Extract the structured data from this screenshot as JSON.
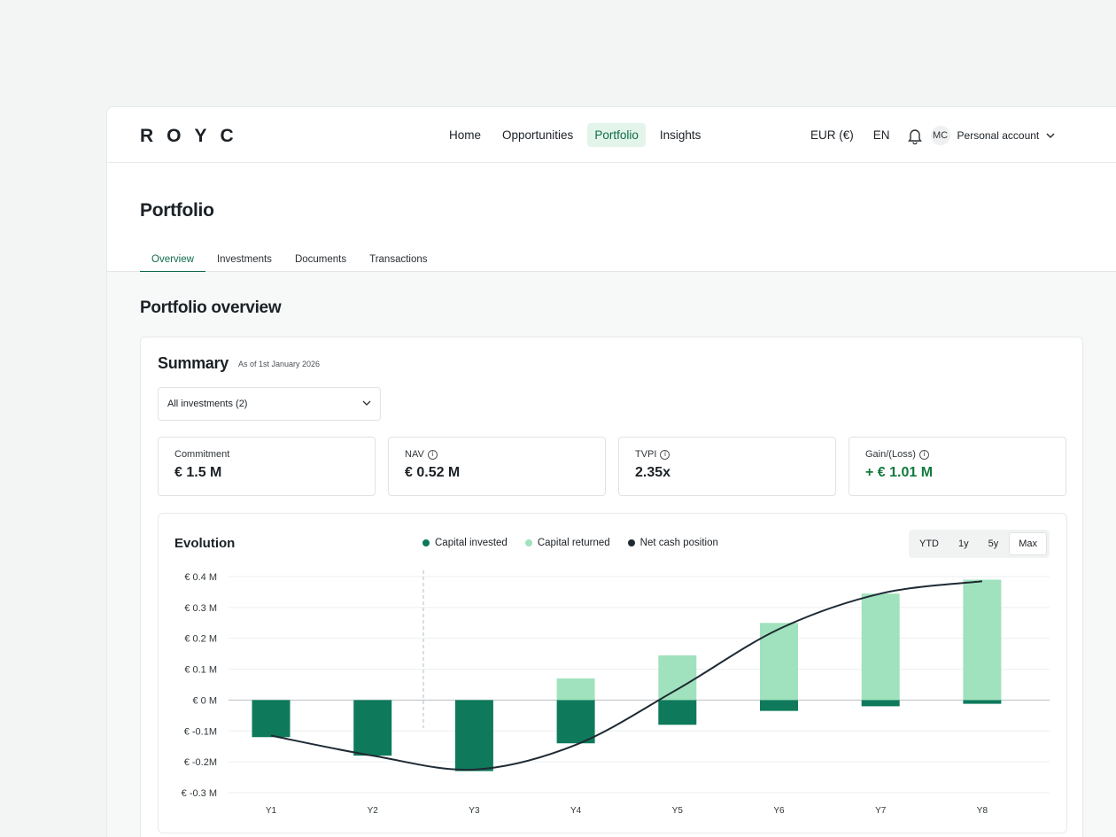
{
  "brand": {
    "logo": "ROYC"
  },
  "nav": {
    "items": [
      {
        "label": "Home"
      },
      {
        "label": "Opportunities"
      },
      {
        "label": "Portfolio",
        "active": true
      },
      {
        "label": "Insights"
      }
    ]
  },
  "toolbar": {
    "currency": "EUR (€)",
    "language": "EN",
    "bell_icon": "bell-icon",
    "avatar_initials": "MC",
    "account_label": "Personal account",
    "chevron_icon": "chevron-down-icon"
  },
  "page": {
    "title": "Portfolio",
    "tabs": [
      {
        "label": "Overview",
        "active": true
      },
      {
        "label": "Investments"
      },
      {
        "label": "Documents"
      },
      {
        "label": "Transactions"
      }
    ],
    "section_title": "Portfolio overview"
  },
  "summary": {
    "title": "Summary",
    "as_of": "As of 1st January 2026",
    "filter": {
      "value": "All investments (2)"
    },
    "metrics": [
      {
        "label": "Commitment",
        "value": "€ 1.5 M",
        "info": false
      },
      {
        "label": "NAV",
        "value": "€ 0.52 M",
        "info": true
      },
      {
        "label": "TVPI",
        "value": "2.35x",
        "info": true
      },
      {
        "label": "Gain/(Loss)",
        "value": "+ € 1.01 M",
        "info": true,
        "positive": true
      }
    ]
  },
  "evolution": {
    "title": "Evolution",
    "legend": [
      {
        "label": "Capital invested",
        "color": "#0e7a5b"
      },
      {
        "label": "Capital returned",
        "color": "#a0e2bd"
      },
      {
        "label": "Net cash position",
        "color": "#1f2a33"
      }
    ],
    "ranges": [
      {
        "label": "YTD"
      },
      {
        "label": "1y"
      },
      {
        "label": "5y"
      },
      {
        "label": "Max",
        "active": true
      }
    ]
  },
  "chart_data": {
    "type": "bar",
    "categories": [
      "Y1",
      "Y2",
      "Y3",
      "Y4",
      "Y5",
      "Y6",
      "Y7",
      "Y8"
    ],
    "series": [
      {
        "name": "Capital invested",
        "values": [
          -0.12,
          -0.18,
          -0.23,
          -0.14,
          -0.08,
          -0.035,
          -0.02,
          -0.012
        ]
      },
      {
        "name": "Capital returned",
        "values": [
          0,
          0,
          0,
          0.07,
          0.145,
          0.25,
          0.345,
          0.39
        ]
      },
      {
        "name": "Net cash position",
        "type": "line",
        "values": [
          -0.115,
          -0.18,
          -0.225,
          -0.145,
          0.035,
          0.23,
          0.345,
          0.385
        ]
      }
    ],
    "ylim": [
      -0.3,
      0.4
    ],
    "yticks": [
      "€ 0.4 M",
      "€ 0.3 M",
      "€ 0.2 M",
      "€ 0.1 M",
      "€ 0 M",
      "€ -0.1M",
      "€ -0.2M",
      "€ -0.3 M"
    ],
    "ytick_values": [
      0.4,
      0.3,
      0.2,
      0.1,
      0,
      -0.1,
      -0.2,
      -0.3
    ],
    "divider_after_category": "Y2",
    "colors": {
      "invested": "#0e7a5b",
      "returned": "#a0e2bd",
      "line": "#1f2a33"
    },
    "grid": true
  }
}
